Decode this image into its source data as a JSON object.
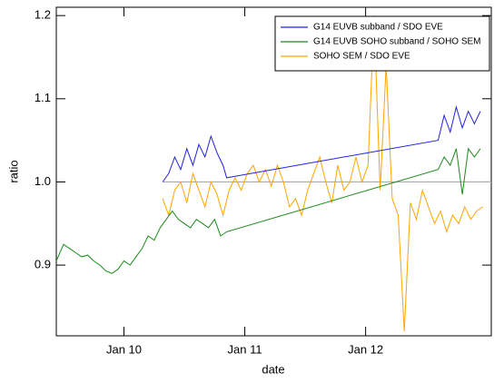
{
  "chart_data": {
    "type": "line",
    "xlabel": "date",
    "ylabel": "ratio",
    "xlim": [
      9.44,
      13.04
    ],
    "ylim": [
      0.815,
      1.21
    ],
    "xticks": [
      {
        "value": 10,
        "label": "Jan 10"
      },
      {
        "value": 11,
        "label": "Jan 11"
      },
      {
        "value": 12,
        "label": "Jan 12"
      }
    ],
    "yticks": [
      0.9,
      {
        "value": 1,
        "label": "1.0"
      },
      1.1,
      1.2
    ],
    "legend": "upper right",
    "reference_line": 1,
    "reference_color": "#aaaaaa",
    "series": [
      {
        "name": "G14 EUVB subband / SDO EVE",
        "color": "#2222dd",
        "x": [
          10.32,
          10.37,
          10.42,
          10.47,
          10.52,
          10.57,
          10.62,
          10.67,
          10.72,
          10.77,
          10.82,
          10.85,
          12.6,
          12.65,
          12.7,
          12.75,
          12.8,
          12.85,
          12.9,
          12.95
        ],
        "values": [
          1.0,
          1.01,
          1.03,
          1.015,
          1.04,
          1.02,
          1.045,
          1.03,
          1.055,
          1.035,
          1.02,
          1.005,
          1.05,
          1.08,
          1.06,
          1.09,
          1.065,
          1.085,
          1.07,
          1.085
        ]
      },
      {
        "name": "G14 EUVB SOHO subband / SOHO SEM",
        "color": "#1a8a1a",
        "x": [
          9.44,
          9.5,
          9.55,
          9.6,
          9.65,
          9.7,
          9.75,
          9.8,
          9.85,
          9.9,
          9.95,
          10.0,
          10.05,
          10.1,
          10.15,
          10.2,
          10.25,
          10.3,
          10.35,
          10.4,
          10.45,
          10.5,
          10.55,
          10.6,
          10.65,
          10.7,
          10.75,
          10.8,
          10.85,
          12.6,
          12.65,
          12.7,
          12.75,
          12.8,
          12.85,
          12.9,
          12.95
        ],
        "values": [
          0.905,
          0.925,
          0.92,
          0.915,
          0.91,
          0.912,
          0.905,
          0.9,
          0.893,
          0.89,
          0.895,
          0.905,
          0.9,
          0.91,
          0.92,
          0.935,
          0.93,
          0.945,
          0.955,
          0.965,
          0.955,
          0.95,
          0.945,
          0.955,
          0.95,
          0.945,
          0.955,
          0.935,
          0.94,
          1.015,
          1.03,
          1.02,
          1.04,
          0.985,
          1.04,
          1.03,
          1.04
        ]
      },
      {
        "name": "SOHO SEM / SDO EVE",
        "color": "#ffa500",
        "x": [
          10.32,
          10.37,
          10.42,
          10.47,
          10.52,
          10.57,
          10.62,
          10.67,
          10.72,
          10.77,
          10.82,
          10.87,
          10.92,
          10.97,
          11.02,
          11.07,
          11.12,
          11.17,
          11.22,
          11.27,
          11.32,
          11.37,
          11.42,
          11.47,
          11.52,
          11.57,
          11.62,
          11.67,
          11.72,
          11.77,
          11.82,
          11.87,
          11.92,
          11.97,
          12.02,
          12.07,
          12.12,
          12.17,
          12.22,
          12.27,
          12.32,
          12.37,
          12.42,
          12.47,
          12.52,
          12.57,
          12.62,
          12.67,
          12.72,
          12.77,
          12.82,
          12.87,
          12.92,
          12.97
        ],
        "values": [
          0.98,
          0.96,
          0.99,
          1.0,
          0.975,
          1.01,
          0.99,
          0.97,
          1.0,
          0.985,
          0.96,
          0.99,
          1.005,
          0.99,
          1.01,
          1.02,
          1.0,
          1.015,
          0.995,
          1.02,
          1.0,
          0.97,
          0.98,
          0.96,
          0.99,
          1.01,
          1.03,
          1.0,
          0.975,
          1.02,
          0.99,
          1.0,
          1.03,
          1.0,
          1.02,
          1.2,
          0.99,
          1.14,
          0.98,
          0.96,
          0.82,
          0.975,
          0.955,
          0.99,
          0.97,
          0.95,
          0.965,
          0.94,
          0.96,
          0.95,
          0.97,
          0.955,
          0.965,
          0.97
        ]
      }
    ]
  }
}
